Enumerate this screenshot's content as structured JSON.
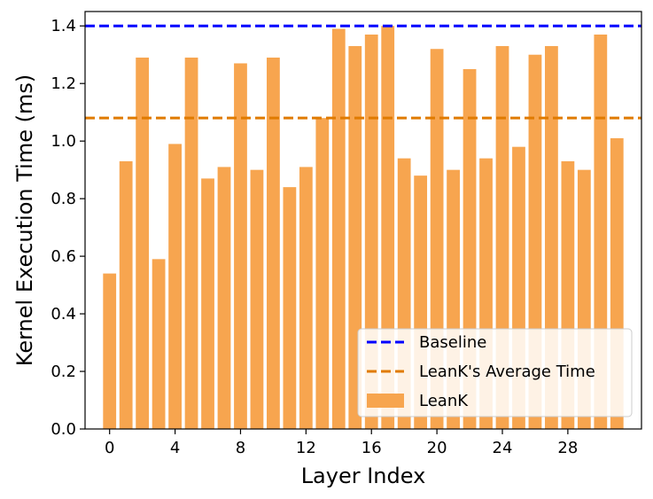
{
  "chart_data": {
    "type": "bar",
    "title": "",
    "xlabel": "Layer Index",
    "ylabel": "Kernel Execution Time (ms)",
    "x": [
      0,
      1,
      2,
      3,
      4,
      5,
      6,
      7,
      8,
      9,
      10,
      11,
      12,
      13,
      14,
      15,
      16,
      17,
      18,
      19,
      20,
      21,
      22,
      23,
      24,
      25,
      26,
      27,
      28,
      29,
      30,
      31
    ],
    "values": [
      0.54,
      0.93,
      1.29,
      0.59,
      0.99,
      1.29,
      0.87,
      0.91,
      1.27,
      0.9,
      1.29,
      0.84,
      0.91,
      1.08,
      1.39,
      1.33,
      1.37,
      1.4,
      0.94,
      0.88,
      1.32,
      0.9,
      1.25,
      0.94,
      1.33,
      0.98,
      1.3,
      1.33,
      0.93,
      0.9,
      1.37,
      1.01
    ],
    "series_name": "LeanK",
    "xticks": [
      0,
      4,
      8,
      12,
      16,
      20,
      24,
      28
    ],
    "xlim": [
      -1.5,
      32.5
    ],
    "ylim": [
      0,
      1.45
    ],
    "yticks": [
      0.0,
      0.2,
      0.4,
      0.6,
      0.8,
      1.0,
      1.2,
      1.4
    ],
    "reference_lines": [
      {
        "name": "Baseline",
        "value": 1.4,
        "color": "#0000ff"
      },
      {
        "name": "LeanK's Average Time",
        "value": 1.08,
        "color": "#e07b00"
      }
    ],
    "bar_color": "#f7a54f",
    "legend": {
      "position": "lower-right",
      "entries": [
        "Baseline",
        "LeanK's Average Time",
        "LeanK"
      ]
    },
    "grid": false
  }
}
